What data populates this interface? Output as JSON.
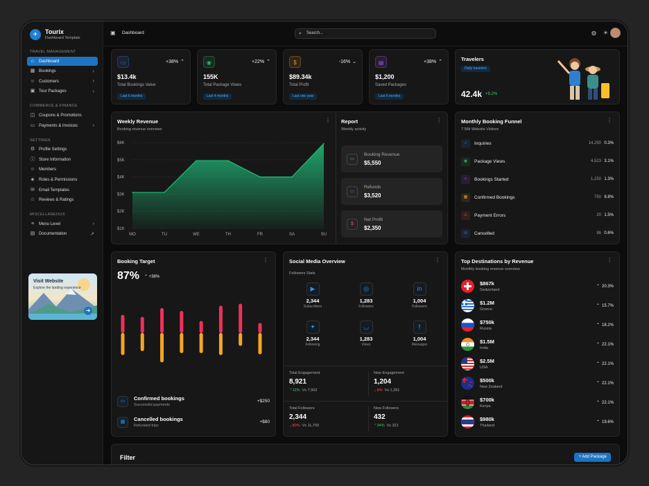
{
  "brand": {
    "name": "Tourix",
    "sub": "Dashboard Template"
  },
  "sidebar": {
    "sections": [
      {
        "title": "TRAVEL MANAGEMENT",
        "items": [
          {
            "label": "Dashboard",
            "icon": "home-icon",
            "active": true
          },
          {
            "label": "Bookings",
            "icon": "calendar-icon",
            "chevron": true
          },
          {
            "label": "Customers",
            "icon": "users-icon",
            "chevron": true
          },
          {
            "label": "Tour Packages",
            "icon": "box-icon",
            "chevron": true
          }
        ]
      },
      {
        "title": "COMMERCE & FINANCE",
        "items": [
          {
            "label": "Coupons & Promotions",
            "icon": "ticket-icon"
          },
          {
            "label": "Payments & Invoices",
            "icon": "card-icon",
            "chevron": true
          }
        ]
      },
      {
        "title": "SETTINGS",
        "items": [
          {
            "label": "Profile Settings",
            "icon": "user-settings-icon"
          },
          {
            "label": "Store Information",
            "icon": "info-icon"
          },
          {
            "label": "Members",
            "icon": "members-icon"
          },
          {
            "label": "Roles & Permissions",
            "icon": "shield-icon"
          },
          {
            "label": "Email Templates",
            "icon": "mail-icon"
          },
          {
            "label": "Reviews & Ratings",
            "icon": "star-icon"
          }
        ]
      },
      {
        "title": "MISCELLANEOUS",
        "items": [
          {
            "label": "Menu Level",
            "icon": "layers-icon",
            "chevron": true
          },
          {
            "label": "Documentation",
            "icon": "doc-icon",
            "external": true
          }
        ]
      }
    ],
    "visit": {
      "title": "Visit Website",
      "sub": "Explore the landing experience"
    }
  },
  "topbar": {
    "crumb": "Dashboard",
    "search_placeholder": "Search..."
  },
  "kpis": [
    {
      "value": "$13.4k",
      "label": "Total Bookings Value",
      "change": "+38%",
      "period": "Last 6 months",
      "icon": "wallet-icon",
      "color": "#3b6fe0"
    },
    {
      "value": "155K",
      "label": "Total Package Views",
      "change": "+22%",
      "period": "Last 4 months",
      "icon": "eye-icon",
      "color": "#2fb36b"
    },
    {
      "value": "$89.34k",
      "label": "Total Profit",
      "change": "-16%",
      "period": "Last one year",
      "icon": "dollar-icon",
      "color": "#e0922f"
    },
    {
      "value": "$1,200",
      "label": "Saved Packages",
      "change": "+38%",
      "period": "Last 6 months",
      "icon": "bookmark-icon",
      "color": "#9b5be0"
    }
  ],
  "travelers": {
    "title": "Travelers",
    "badge": "Daily travelers",
    "value": "42.4k",
    "change": "+9.2%"
  },
  "weekly": {
    "title": "Weekly Revenue",
    "sub": "Booking revenue overview"
  },
  "chart_data": {
    "type": "area",
    "title": "Weekly Revenue",
    "categories": [
      "MO",
      "TU",
      "WE",
      "TH",
      "FR",
      "SA",
      "SU"
    ],
    "y_ticks": [
      "$1K",
      "$2K",
      "$3K",
      "$4K",
      "$5K",
      "$6K"
    ],
    "ylim": [
      1,
      6
    ],
    "values": [
      3.1,
      3.1,
      4.95,
      4.95,
      4.0,
      4.0,
      5.95
    ],
    "color": "#1fbf7a"
  },
  "report": {
    "title": "Report",
    "sub": "Weekly activity",
    "items": [
      {
        "label": "Booking Revenue",
        "value": "$5,550",
        "icon": "wallet-icon",
        "color": "#2fb36b"
      },
      {
        "label": "Refunds",
        "value": "$3,520",
        "icon": "card-icon",
        "color": "#3b6fe0"
      },
      {
        "label": "Net Profit",
        "value": "$2,350",
        "icon": "dollar-icon",
        "color": "#ff4d4d"
      }
    ]
  },
  "funnel": {
    "title": "Monthly Booking Funnel",
    "sub": "7.58k Website Visitors",
    "rows": [
      {
        "label": "Inquiries",
        "count": "14,250",
        "pct": "0.3%",
        "icon": "search-icon",
        "color": "#3b6fe0"
      },
      {
        "label": "Package Views",
        "count": "4,523",
        "pct": "3.1%",
        "icon": "eye-icon",
        "color": "#2fb36b"
      },
      {
        "label": "Bookings Started",
        "count": "1,250",
        "pct": "1.3%",
        "icon": "sparkle-icon",
        "color": "#9b5be0"
      },
      {
        "label": "Confirmed Bookings",
        "count": "750",
        "pct": "9.8%",
        "icon": "calendar-icon",
        "color": "#e0922f"
      },
      {
        "label": "Payment Errors",
        "count": "20",
        "pct": "1.5%",
        "icon": "warning-icon",
        "color": "#ff4d4d"
      },
      {
        "label": "Cancelled",
        "count": "86",
        "pct": "0.6%",
        "icon": "cancel-icon",
        "color": "#3b6fe0"
      }
    ]
  },
  "target": {
    "title": "Booking Target",
    "value": "87%",
    "change": "+38%",
    "rows": [
      {
        "title": "Confirmed bookings",
        "sub": "Successful payments",
        "value": "+$250",
        "icon": "wallet-icon"
      },
      {
        "title": "Cancelled bookings",
        "sub": "Refunded trips",
        "value": "+$80",
        "icon": "calendar-icon"
      }
    ],
    "bars": [
      {
        "top": 0.45,
        "bottom": 0.55
      },
      {
        "top": 0.4,
        "bottom": 0.45
      },
      {
        "top": 0.62,
        "bottom": 0.73
      },
      {
        "top": 0.55,
        "bottom": 0.5
      },
      {
        "top": 0.3,
        "bottom": 0.5
      },
      {
        "top": 0.68,
        "bottom": 0.55
      },
      {
        "top": 0.73,
        "bottom": 0.32
      },
      {
        "top": 0.25,
        "bottom": 0.53
      }
    ],
    "colors": {
      "top": "#f0305a",
      "bottom": "#f5a623"
    }
  },
  "social": {
    "title": "Social Media Overview",
    "sub": "Followers Stats",
    "items": [
      {
        "icon": "youtube-icon",
        "glyph": "▶",
        "value": "2,344",
        "label": "Subscribers"
      },
      {
        "icon": "instagram-icon",
        "glyph": "◎",
        "value": "1,283",
        "label": "Followers"
      },
      {
        "icon": "linkedin-icon",
        "glyph": "in",
        "value": "1,004",
        "label": "Followers"
      },
      {
        "icon": "twitter-icon",
        "glyph": "✦",
        "value": "2,344",
        "label": "Following"
      },
      {
        "icon": "snapchat-icon",
        "glyph": "◡",
        "value": "1,283",
        "label": "Views"
      },
      {
        "icon": "facebook-icon",
        "glyph": "f",
        "value": "1,004",
        "label": "Messages"
      }
    ],
    "stats": [
      {
        "label": "Total Engagement",
        "value": "8,921",
        "delta": "12%",
        "dir": "up",
        "vs": "Vs 7,963"
      },
      {
        "label": "New Engagement",
        "value": "1,204",
        "delta": "6%",
        "dir": "down",
        "vs": "Vs 1,281"
      },
      {
        "label": "Total Followers",
        "value": "2,344",
        "delta": "80%",
        "dir": "down",
        "vs": "Vs 11,793"
      },
      {
        "label": "New Followers",
        "value": "432",
        "delta": "34%",
        "dir": "up",
        "vs": "Vs 321"
      }
    ]
  },
  "destinations": {
    "title": "Top Destinations by Revenue",
    "sub": "Monthly booking revenue overview",
    "rows": [
      {
        "value": "$867k",
        "name": "Switzerland",
        "pct": "20.3%",
        "flag": "switzerland-flag-icon"
      },
      {
        "value": "$1.2M",
        "name": "Greece",
        "pct": "15.7%",
        "flag": "greece-flag-icon"
      },
      {
        "value": "$750k",
        "name": "Russia",
        "pct": "18.2%",
        "flag": "russia-flag-icon"
      },
      {
        "value": "$1.5M",
        "name": "India",
        "pct": "22.1%",
        "flag": "india-flag-icon"
      },
      {
        "value": "$2.5M",
        "name": "USA",
        "pct": "22.1%",
        "flag": "usa-flag-icon"
      },
      {
        "value": "$500k",
        "name": "New Zealand",
        "pct": "22.1%",
        "flag": "new-zealand-flag-icon"
      },
      {
        "value": "$700k",
        "name": "Kenya",
        "pct": "22.1%",
        "flag": "kenya-flag-icon"
      },
      {
        "value": "$980k",
        "name": "Thailand",
        "pct": "19.6%",
        "flag": "thailand-flag-icon"
      }
    ]
  },
  "filter": {
    "title": "Filter",
    "add_label": "+ Add Package"
  }
}
